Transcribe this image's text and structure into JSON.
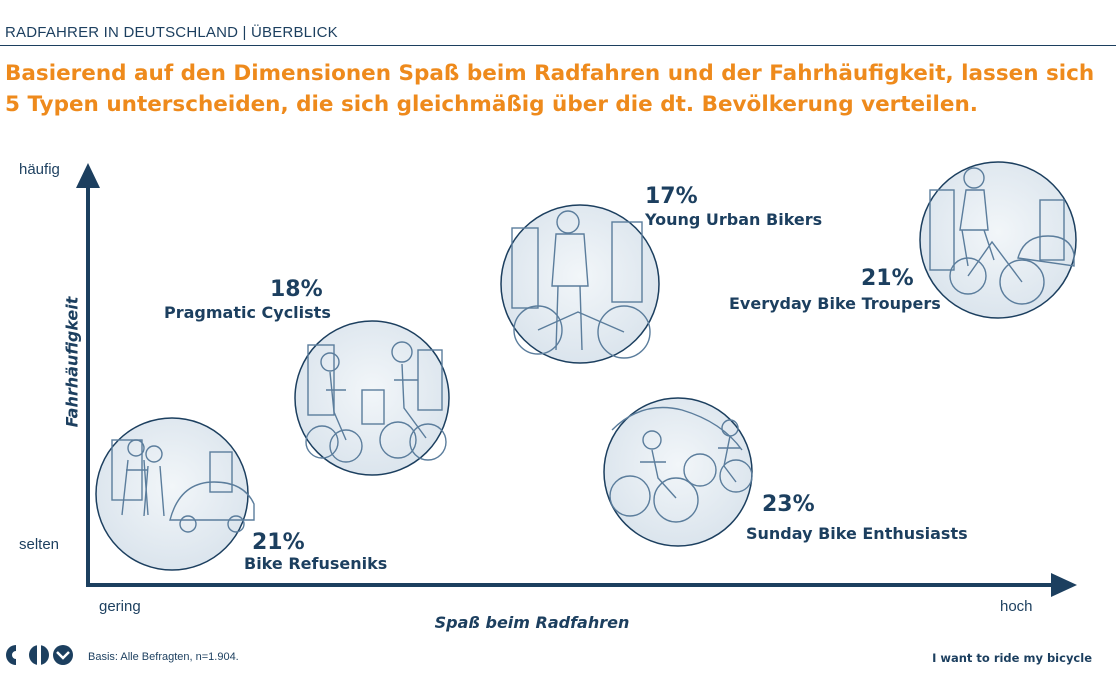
{
  "header": {
    "section_label": "RADFAHRER IN DEUTSCHLAND | ÜBERBLICK",
    "headline": "Basierend auf den Dimensionen Spaß beim Radfahren und der Fahrhäufigkeit, lassen sich 5 Typen unterscheiden, die sich gleichmäßig über die dt. Bevölkerung verteilen."
  },
  "colors": {
    "accent": "#ee8a1c",
    "navy": "#1c3f5f",
    "illustration": "#5b7d9c"
  },
  "chart_data": {
    "type": "scatter",
    "xlabel": "Spaß beim Radfahren",
    "ylabel": "Fahrhäufigkeit",
    "x_low": "gering",
    "x_high": "hoch",
    "y_low": "selten",
    "y_high": "häufig",
    "segments": [
      {
        "name": "Bike Refuseniks",
        "share": "21%"
      },
      {
        "name": "Pragmatic Cyclists",
        "share": "18%"
      },
      {
        "name": "Young Urban Bikers",
        "share": "17%"
      },
      {
        "name": "Sunday Bike Enthusiasts",
        "share": "23%"
      },
      {
        "name": "Everyday Bike Troupers",
        "share": "21%"
      }
    ]
  },
  "footer": {
    "basis": "Basis: Alle Befragten, n=1.904.",
    "tagline": "I want to ride my bicycle"
  }
}
